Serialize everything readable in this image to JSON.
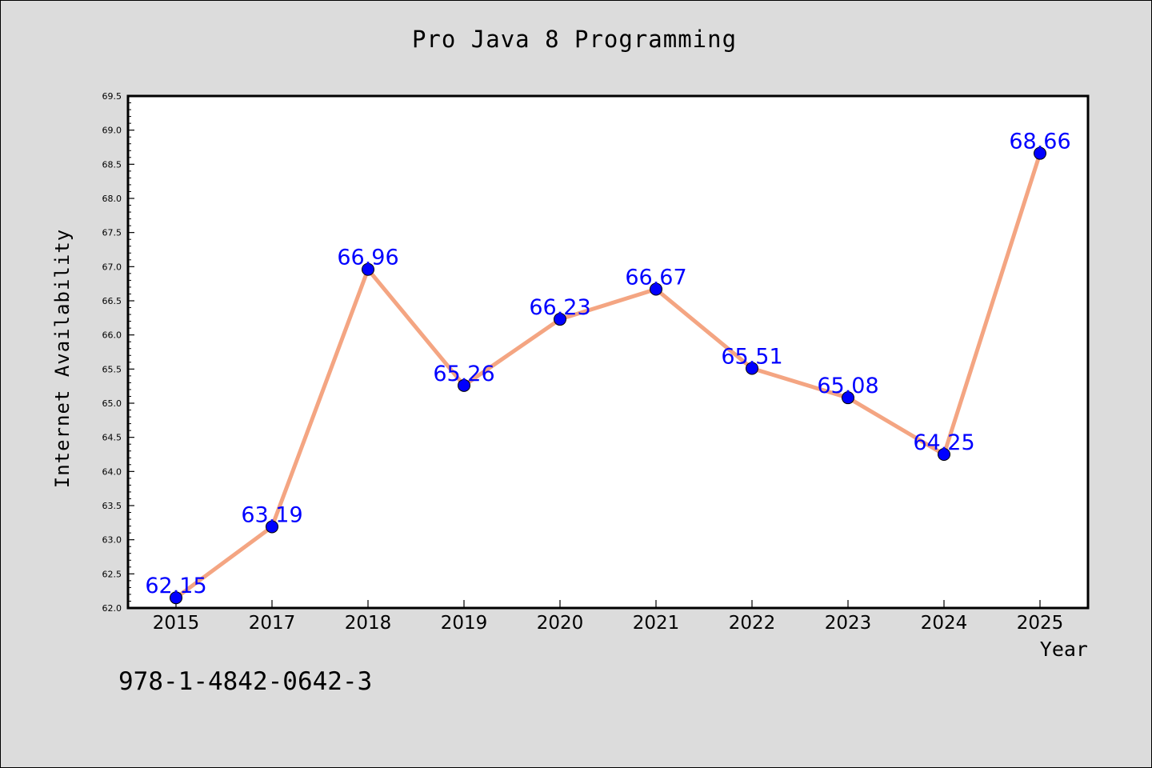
{
  "chart_data": {
    "type": "line",
    "title": "Pro Java 8 Programming",
    "xlabel": "Year",
    "ylabel": "Internet Availability",
    "categories": [
      "2015",
      "2017",
      "2018",
      "2019",
      "2020",
      "2021",
      "2022",
      "2023",
      "2024",
      "2025"
    ],
    "series": [
      {
        "values": [
          62.15,
          63.19,
          66.96,
          65.26,
          66.23,
          66.67,
          65.51,
          65.08,
          64.25,
          68.66
        ],
        "data_labels": [
          "62.15",
          "63.19",
          "66.96",
          "65.26",
          "66.23",
          "66.67",
          "65.51",
          "65.08",
          "64.25",
          "68.66"
        ]
      }
    ],
    "ylim": [
      62.0,
      69.5
    ],
    "yticks": [
      "62.0",
      "62.5",
      "63.0",
      "63.5",
      "64.0",
      "64.5",
      "65.0",
      "65.5",
      "66.0",
      "66.5",
      "67.0",
      "67.5",
      "68.0",
      "68.5",
      "69.0",
      "69.5"
    ],
    "grid": false,
    "legend": "none"
  },
  "footer_text": "978-1-4842-0642-3",
  "colors": {
    "background": "#dcdcdc",
    "plot_area": "#ffffff",
    "line": "#f4a582",
    "marker": "#0000ff",
    "data_label": "#0000ff"
  }
}
